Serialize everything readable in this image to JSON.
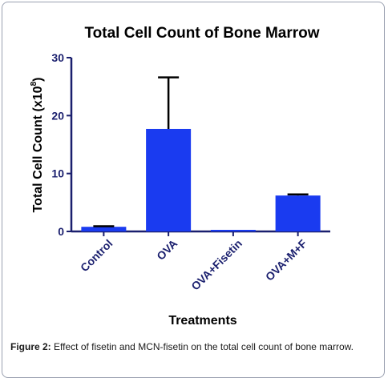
{
  "colors": {
    "bar": "#1a3bf0",
    "axis": "#1a1f6e",
    "text": "#000000",
    "error": "#000000",
    "frame": "#9aa0b0"
  },
  "chart_data": {
    "type": "bar",
    "title": "Total Cell Count of Bone Marrow",
    "ylabel_main": "Total Cell  Count (x10",
    "ylabel_exp": "8",
    "ylabel_end": ")",
    "xlabel": "Treatments",
    "categories": [
      "Control",
      "OVA",
      "OVA+Fisetin",
      "OVA+M+F"
    ],
    "values": [
      0.8,
      17.7,
      0.2,
      6.2
    ],
    "errors": [
      0.1,
      8.9,
      0.0,
      0.2
    ],
    "ylim": [
      0,
      30
    ],
    "yticks": [
      0,
      10,
      20,
      30
    ],
    "grid": false
  },
  "caption": {
    "label": "Figure 2:",
    "text": "Effect of fisetin and MCN-fisetin on the total cell count of bone marrow."
  }
}
